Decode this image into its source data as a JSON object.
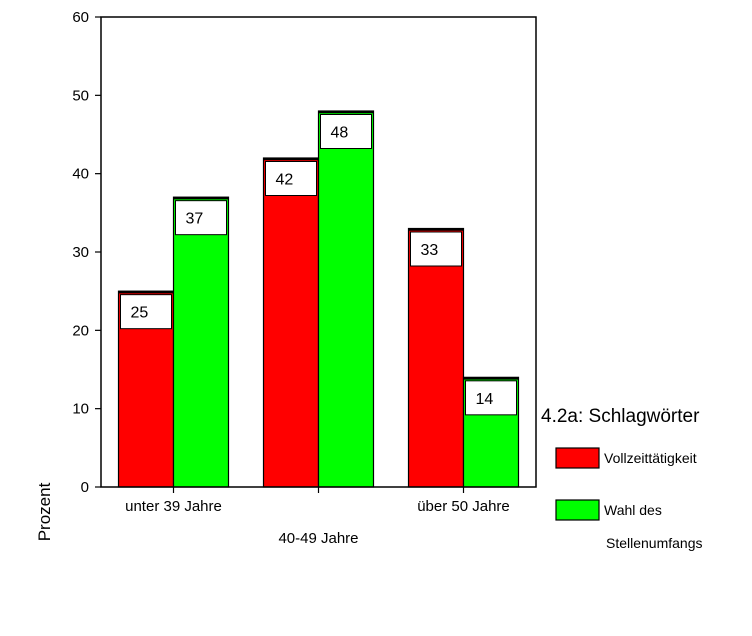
{
  "chart_data": {
    "type": "bar",
    "title": "",
    "xlabel": "",
    "ylabel": "Prozent",
    "ylim": [
      0,
      60
    ],
    "yticks": [
      0,
      10,
      20,
      30,
      40,
      50,
      60
    ],
    "grid": false,
    "legend": {
      "title": "4.2a: Schlagwörter",
      "position": "right",
      "entries": [
        {
          "name": "Vollzeittätigkeit",
          "color": "#ff0000"
        },
        {
          "name": "Wahl des Stellenumfangs",
          "lines": [
            "Wahl des",
            "Stellenumfangs"
          ],
          "color": "#00ff00"
        }
      ]
    },
    "categories": [
      "unter 39 Jahre",
      "40-49 Jahre",
      "über 50 Jahre"
    ],
    "series": [
      {
        "name": "Vollzeittätigkeit",
        "color": "#ff0000",
        "values": [
          25,
          42,
          33
        ],
        "labels": [
          "25",
          "42",
          "33"
        ]
      },
      {
        "name": "Wahl des Stellenumfangs",
        "color": "#00ff00",
        "values": [
          37,
          48,
          14
        ],
        "labels": [
          "37",
          "48",
          "14"
        ]
      }
    ]
  }
}
